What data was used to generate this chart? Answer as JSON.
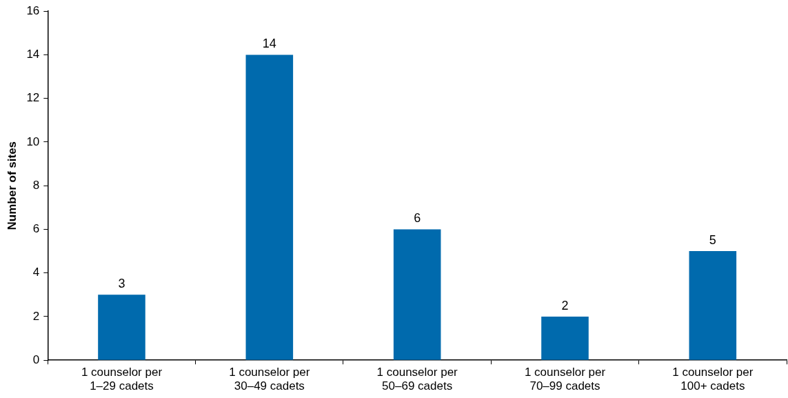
{
  "chart_data": {
    "type": "bar",
    "ylabel": "Number of sites",
    "categories": [
      "1 counselor per\n1–29 cadets",
      "1 counselor per\n30–49 cadets",
      "1 counselor per\n50–69 cadets",
      "1 counselor per\n70–99 cadets",
      "1 counselor per\n100+ cadets"
    ],
    "values": [
      3,
      14,
      6,
      2,
      5
    ],
    "color": "#006aad",
    "ylim": [
      0,
      16
    ],
    "yticks": [
      0,
      2,
      4,
      6,
      8,
      10,
      12,
      14,
      16
    ],
    "grid": false,
    "data_labels": true
  }
}
